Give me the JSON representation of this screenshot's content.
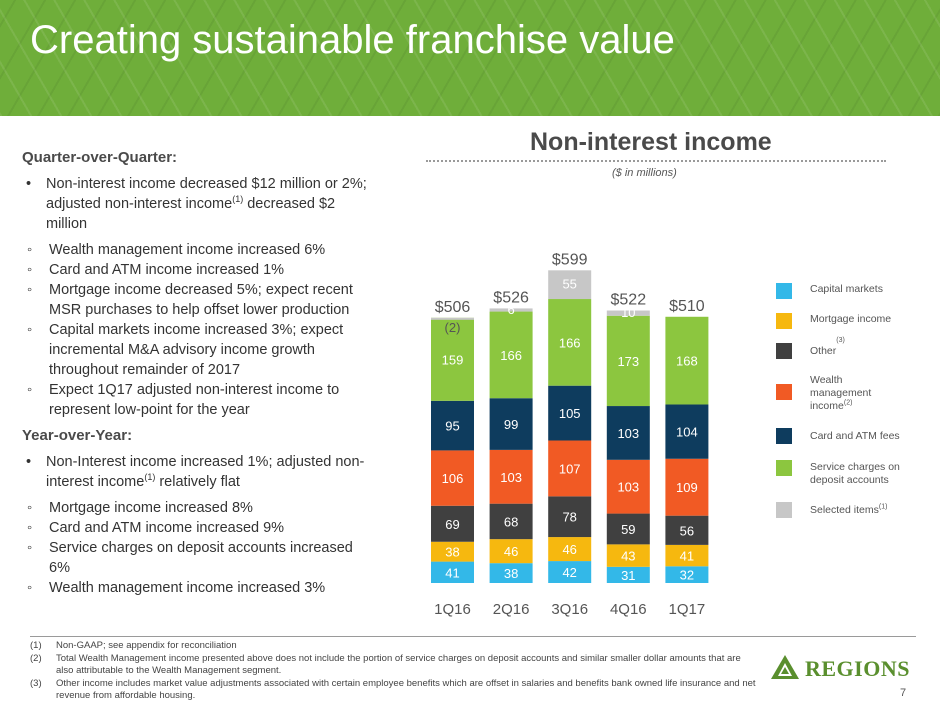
{
  "header": {
    "title": "Creating sustainable franchise value"
  },
  "left": {
    "qoq": {
      "heading": "Quarter-over-Quarter:",
      "bullet_pre": "Non-interest income decreased $12 million or 2%; adjusted non-interest income",
      "bullet_sup": "(1)",
      "bullet_post": " decreased $2 million",
      "subs": [
        "Wealth management income increased 6%",
        "Card and ATM income increased 1%",
        "Mortgage income decreased 5%; expect recent MSR purchases to help offset lower production",
        "Capital markets income increased 3%; expect incremental M&A advisory income growth throughout remainder of 2017",
        "Expect 1Q17 adjusted non-interest income to represent low-point for the year"
      ]
    },
    "yoy": {
      "heading": "Year-over-Year:",
      "bullet_pre": "Non-Interest income increased 1%; adjusted non-interest income",
      "bullet_sup": "(1)",
      "bullet_post": " relatively flat",
      "subs": [
        "Mortgage income increased 8%",
        "Card and ATM income increased 9%",
        "Service charges on deposit accounts increased 6%",
        "Wealth management income increased 3%"
      ]
    }
  },
  "chart_data": {
    "type": "bar",
    "stacked": true,
    "title": "Non-interest income",
    "subtitle": "($ in millions)",
    "categories": [
      "1Q16",
      "2Q16",
      "3Q16",
      "4Q16",
      "1Q17"
    ],
    "totals": [
      "$506",
      "$526",
      "$599",
      "$522",
      "$510"
    ],
    "series": [
      {
        "name": "Capital markets",
        "values": [
          41,
          38,
          42,
          31,
          32
        ],
        "labels": [
          "41",
          "38",
          "42",
          "31",
          "32"
        ],
        "color": "#33b8e8",
        "label_color": "#ffffff"
      },
      {
        "name": "Mortgage income",
        "values": [
          38,
          46,
          46,
          43,
          41
        ],
        "labels": [
          "38",
          "46",
          "46",
          "43",
          "41"
        ],
        "color": "#f6b80f",
        "label_color": "#ffffff"
      },
      {
        "name": "Other",
        "values": [
          69,
          68,
          78,
          59,
          56
        ],
        "labels": [
          "69",
          "68",
          "78",
          "59",
          "56"
        ],
        "color": "#404040",
        "label_color": "#ffffff"
      },
      {
        "name": "Wealth management income",
        "values": [
          106,
          103,
          107,
          103,
          109
        ],
        "labels": [
          "106",
          "103",
          "107",
          "103",
          "109"
        ],
        "color": "#f15a24",
        "label_color": "#ffffff"
      },
      {
        "name": "Card and ATM fees",
        "values": [
          95,
          99,
          105,
          103,
          104
        ],
        "labels": [
          "95",
          "99",
          "105",
          "103",
          "104"
        ],
        "color": "#0e3c5e",
        "label_color": "#ffffff"
      },
      {
        "name": "Service charges on deposit accounts",
        "values": [
          159,
          166,
          166,
          173,
          168
        ],
        "labels": [
          "159",
          "166",
          "166",
          "173",
          "168"
        ],
        "color": "#8cc63f",
        "label_color": "#ffffff"
      },
      {
        "name": "Selected items",
        "values": [
          -2,
          6,
          55,
          10,
          0
        ],
        "labels": [
          "(2)",
          "6",
          "55",
          "10",
          ""
        ],
        "color": "#c7c7c7",
        "label_color": "#ffffff"
      }
    ],
    "ylim": [
      0,
      620
    ]
  },
  "legend": {
    "items": [
      {
        "label": "Capital markets",
        "sup": "",
        "color": "#33b8e8"
      },
      {
        "label": "Mortgage income",
        "sup": "",
        "color": "#f6b80f"
      },
      {
        "label": "Other",
        "sup": "(3)",
        "color": "#404040"
      },
      {
        "label": "Wealth management income",
        "sup": "(2)",
        "color": "#f15a24"
      },
      {
        "label": "Card and ATM fees",
        "sup": "",
        "color": "#0e3c5e"
      },
      {
        "label": "Service charges on deposit accounts",
        "sup": "",
        "color": "#8cc63f"
      },
      {
        "label": "Selected items",
        "sup": "(1)",
        "color": "#c7c7c7"
      }
    ]
  },
  "footnotes": [
    {
      "num": "(1)",
      "text": "Non-GAAP; see appendix for reconciliation"
    },
    {
      "num": "(2)",
      "text": "Total Wealth Management income presented above does not include the portion of service charges on deposit accounts and similar smaller dollar amounts that are also attributable to the Wealth Management segment."
    },
    {
      "num": "(3)",
      "text": "Other income includes market value adjustments associated with certain employee benefits which are offset in salaries and benefits bank owned life insurance and net revenue from affordable housing."
    }
  ],
  "brand": {
    "name": "REGIONS",
    "color": "#5a8f2e"
  },
  "page_number": "7"
}
